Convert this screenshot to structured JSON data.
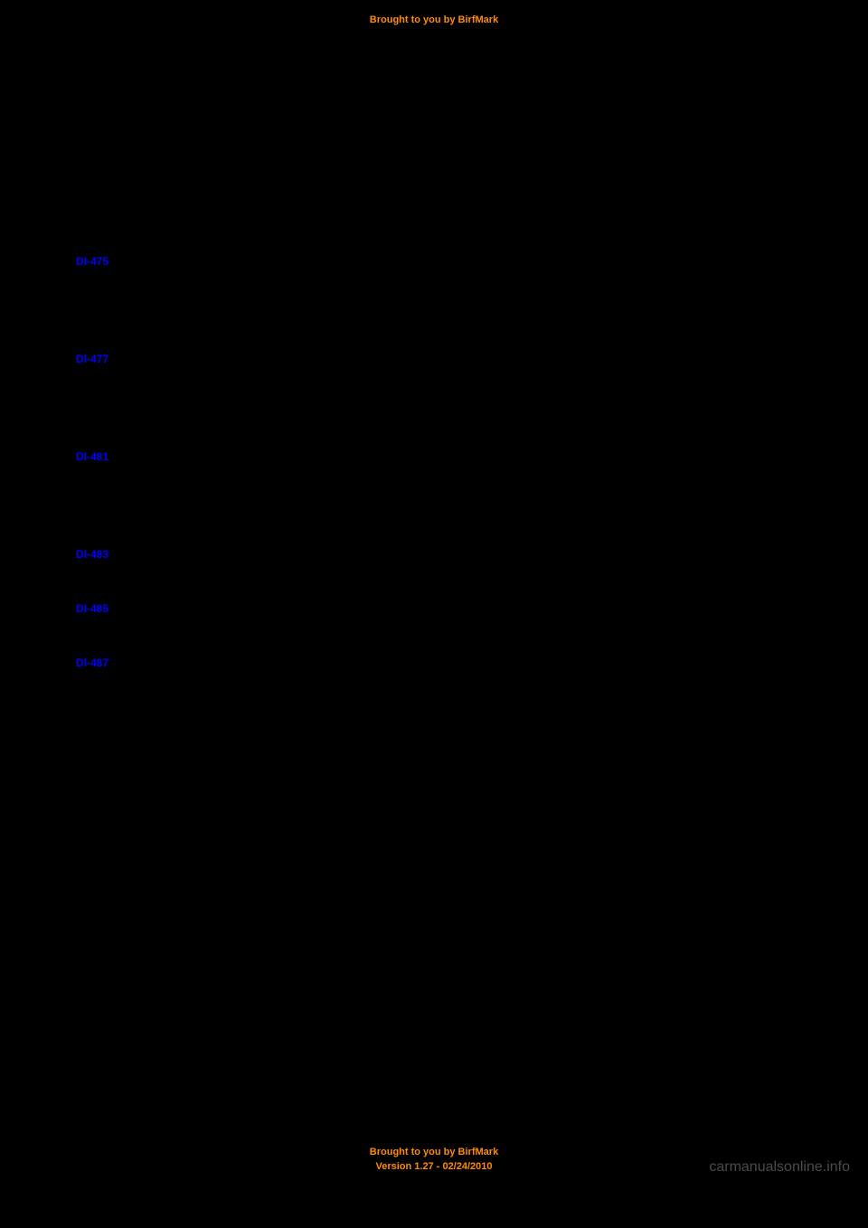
{
  "header": {
    "text": "Brought to you by BirfMark"
  },
  "links": [
    {
      "label": "DI-475",
      "spacing": "large"
    },
    {
      "label": "DI-477",
      "spacing": "large"
    },
    {
      "label": "DI-481",
      "spacing": "large"
    },
    {
      "label": "DI-483",
      "spacing": "small"
    },
    {
      "label": "DI-485",
      "spacing": "small"
    },
    {
      "label": "DI-487",
      "spacing": "small"
    }
  ],
  "footer": {
    "line1": "Brought to you by BirfMark",
    "line2": "Version 1.27 - 02/24/2010"
  },
  "watermark": "carmanualsonline.info",
  "colors": {
    "background": "#000000",
    "header_footer": "#ff8c00",
    "link": "#0000ff",
    "watermark": "#4a4a4a"
  }
}
